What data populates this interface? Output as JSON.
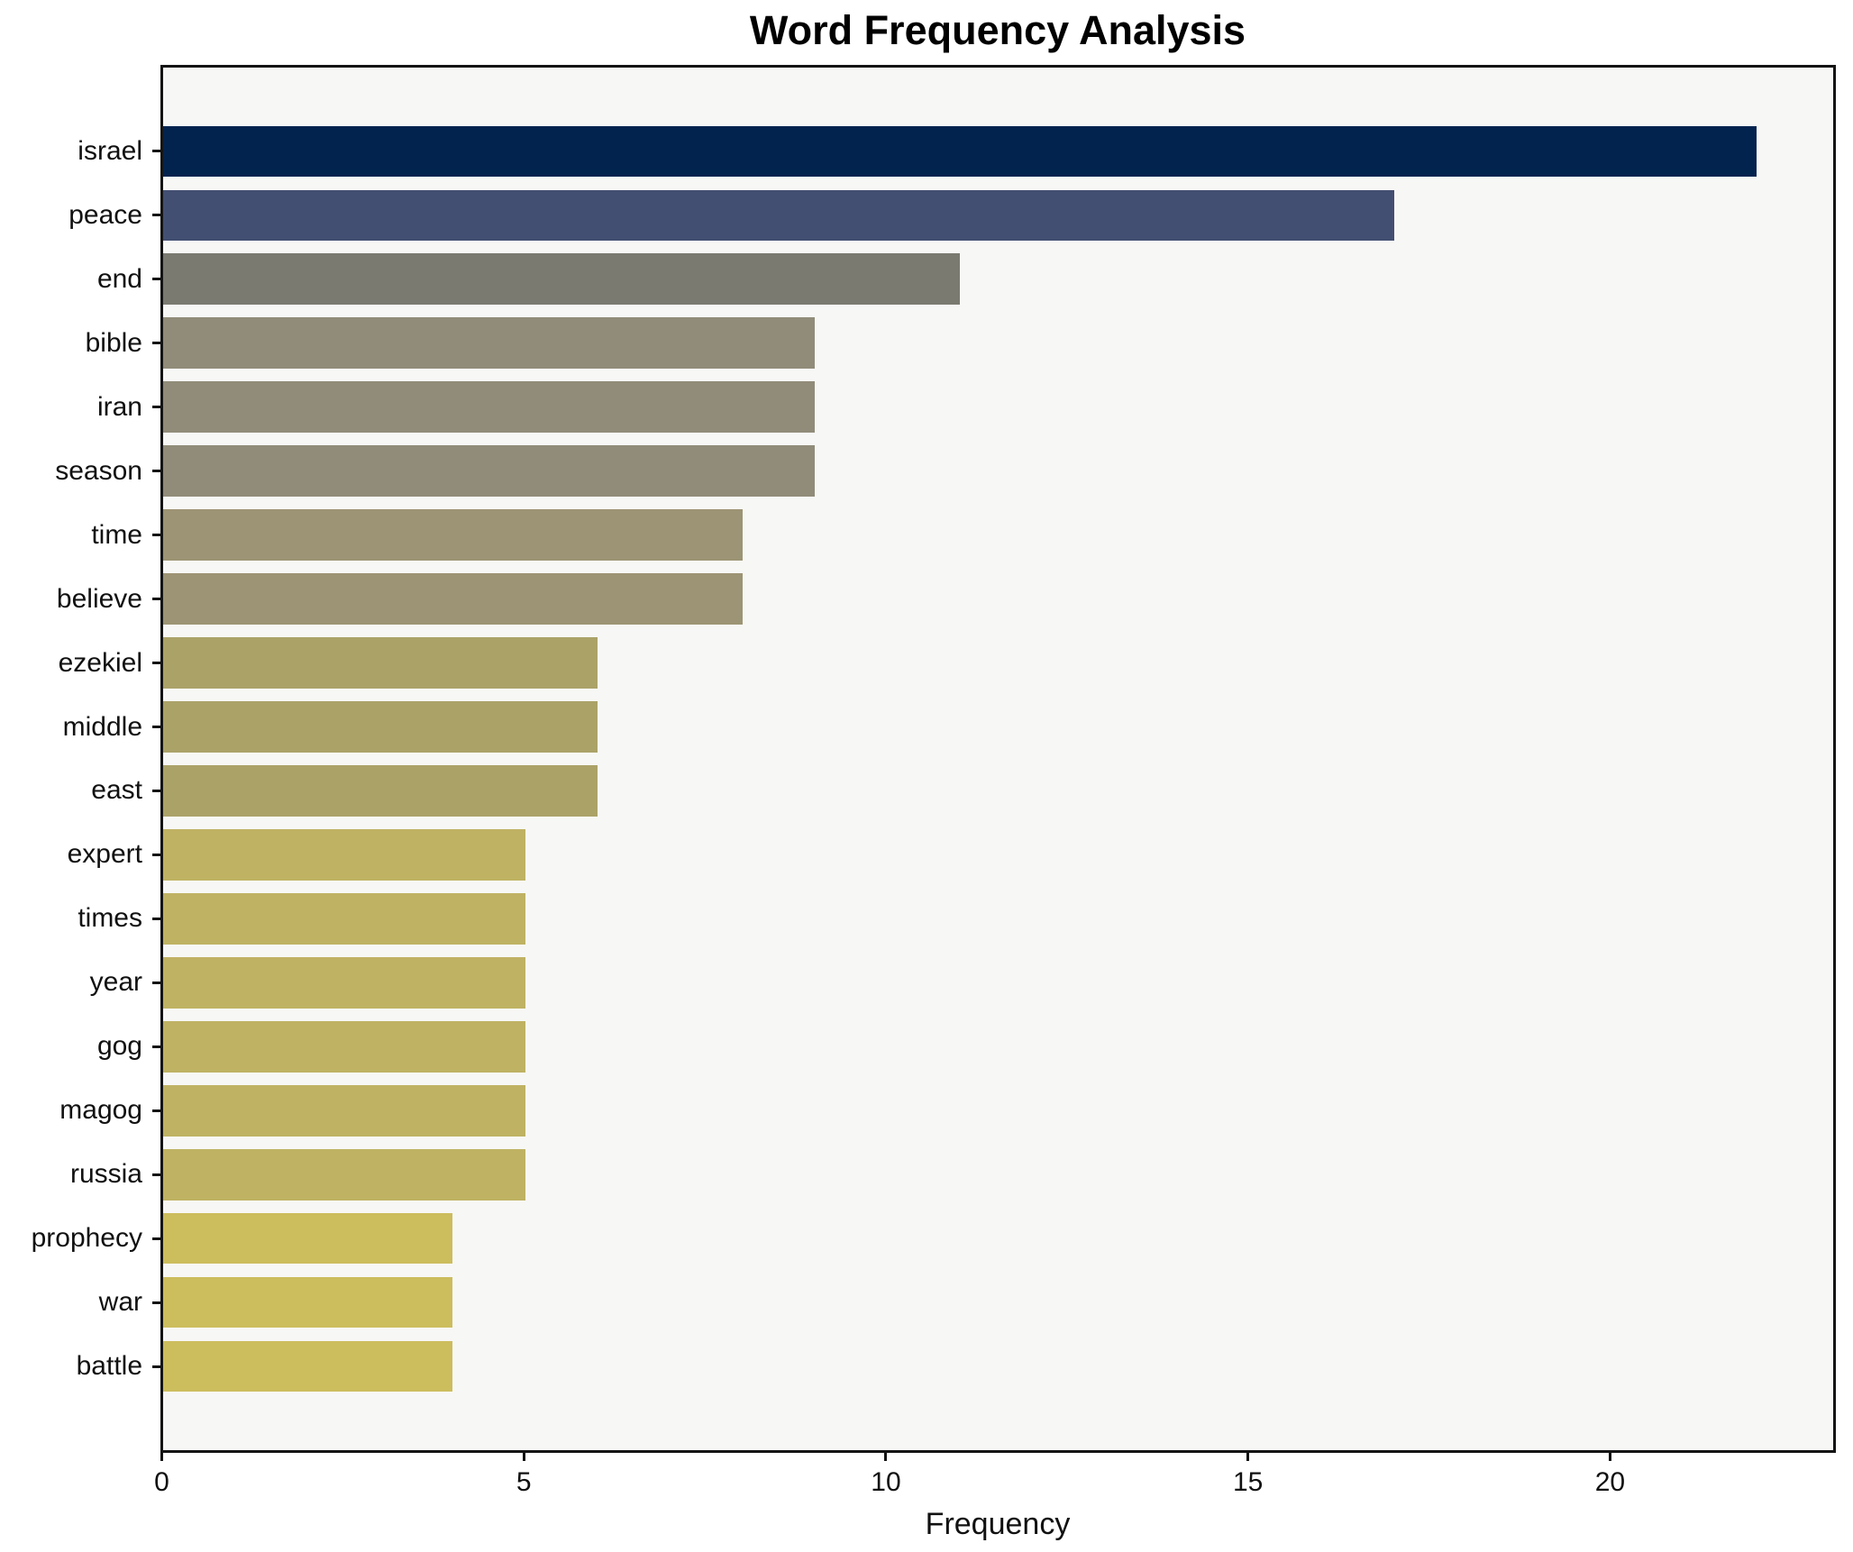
{
  "chart_data": {
    "type": "bar",
    "orientation": "horizontal",
    "title": "Word Frequency Analysis",
    "xlabel": "Frequency",
    "ylabel": "",
    "categories": [
      "israel",
      "peace",
      "end",
      "bible",
      "iran",
      "season",
      "time",
      "believe",
      "ezekiel",
      "middle",
      "east",
      "expert",
      "times",
      "year",
      "gog",
      "magog",
      "russia",
      "prophecy",
      "war",
      "battle"
    ],
    "values": [
      22,
      17,
      11,
      9,
      9,
      9,
      8,
      8,
      6,
      6,
      6,
      5,
      5,
      5,
      5,
      5,
      5,
      4,
      4,
      4
    ],
    "bar_colors": [
      "#02234e",
      "#434f72",
      "#7b7a71",
      "#918c79",
      "#918c79",
      "#918c79",
      "#9c9474",
      "#9c9474",
      "#aba268",
      "#aba268",
      "#aba268",
      "#bfb263",
      "#bfb263",
      "#bfb263",
      "#bfb263",
      "#bfb263",
      "#bfb263",
      "#ccbd5d",
      "#ccbd5d",
      "#ccbd5d"
    ],
    "xticks": [
      0,
      5,
      10,
      15,
      20
    ],
    "xlim": [
      0,
      23.1
    ],
    "grid": false,
    "legend": "none",
    "colormap": "cividis",
    "plot_background": "#f7f7f5",
    "figure_background": "#ffffff",
    "bar_height_fraction": 0.8
  }
}
